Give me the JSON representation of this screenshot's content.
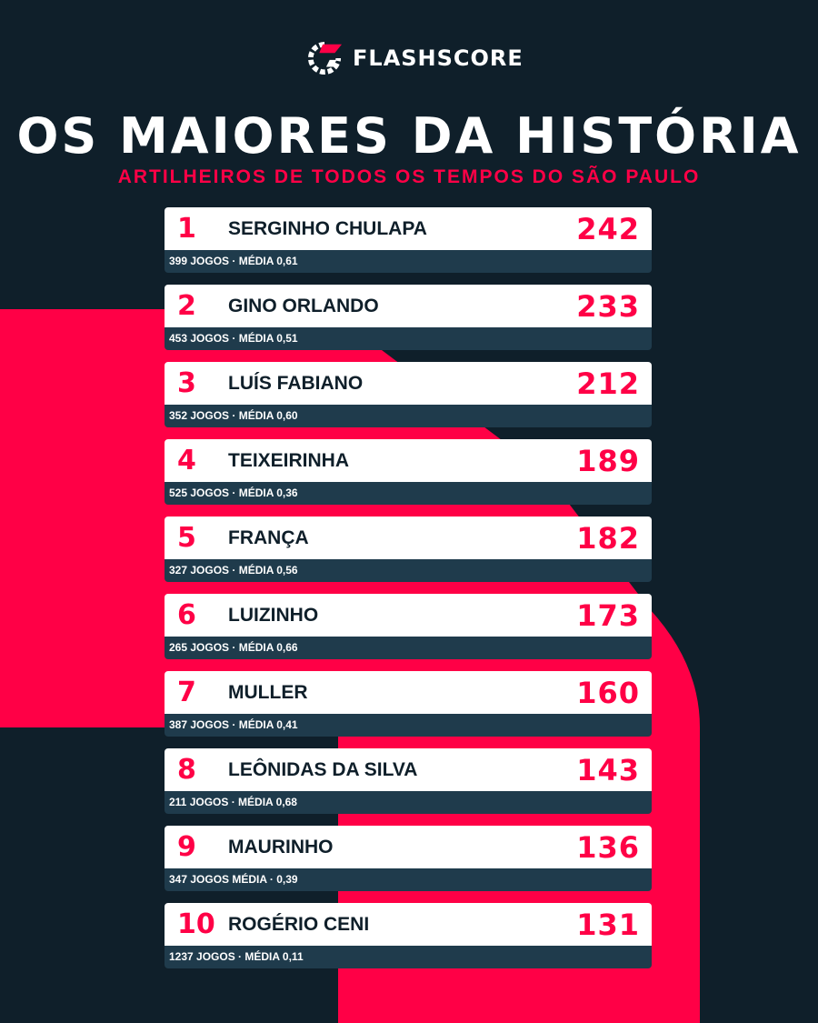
{
  "brand": {
    "name": "FLASHSCORE",
    "icon": "flashscore-logo-icon"
  },
  "title": "OS MAIORES DA HISTÓRIA",
  "subtitle": "ARTILHEIROS DE TODOS OS TEMPOS DO SÃO PAULO",
  "colors": {
    "background": "#0f1f2a",
    "accent": "#ff0046",
    "row": "#ffffff",
    "row_footer": "#1f3b4c"
  },
  "ranking": [
    {
      "rank": "1",
      "name": "SERGINHO CHULAPA",
      "goals": "242",
      "stats": "399 JOGOS · MÉDIA 0,61"
    },
    {
      "rank": "2",
      "name": "GINO ORLANDO",
      "goals": "233",
      "stats": "453 JOGOS · MÉDIA 0,51"
    },
    {
      "rank": "3",
      "name": "LUÍS FABIANO",
      "goals": "212",
      "stats": "352 JOGOS · MÉDIA 0,60"
    },
    {
      "rank": "4",
      "name": "TEIXEIRINHA",
      "goals": "189",
      "stats": "525 JOGOS · MÉDIA 0,36"
    },
    {
      "rank": "5",
      "name": "FRANÇA",
      "goals": "182",
      "stats": "327 JOGOS · MÉDIA 0,56"
    },
    {
      "rank": "6",
      "name": "LUIZINHO",
      "goals": "173",
      "stats": "265 JOGOS · MÉDIA 0,66"
    },
    {
      "rank": "7",
      "name": "MULLER",
      "goals": "160",
      "stats": "387 JOGOS · MÉDIA 0,41"
    },
    {
      "rank": "8",
      "name": "LEÔNIDAS DA SILVA",
      "goals": "143",
      "stats": "211 JOGOS · MÉDIA 0,68"
    },
    {
      "rank": "9",
      "name": "MAURINHO",
      "goals": "136",
      "stats": "347 JOGOS MÉDIA · 0,39"
    },
    {
      "rank": "10",
      "name": "ROGÉRIO CENI",
      "goals": "131",
      "stats": "1237 JOGOS · MÉDIA 0,11"
    }
  ]
}
